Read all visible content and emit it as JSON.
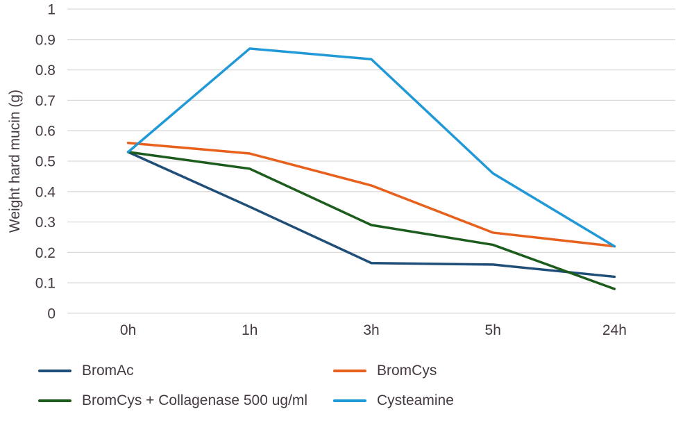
{
  "chart_data": {
    "type": "line",
    "title": "",
    "xlabel": "",
    "ylabel": "Weight hard mucin (g)",
    "categories": [
      "0h",
      "1h",
      "3h",
      "5h",
      "24h"
    ],
    "ylim": [
      0,
      1
    ],
    "ytick_labels": [
      "0",
      "0.1",
      "0.2",
      "0.3",
      "0.4",
      "0.5",
      "0.6",
      "0.7",
      "0.8",
      "0.9",
      "1"
    ],
    "grid": "horizontal gridlines on",
    "legend_position": "bottom, two columns",
    "series": [
      {
        "name": "BromAc",
        "color": "#1F4E79",
        "values": [
          0.53,
          0.35,
          0.165,
          0.16,
          0.12
        ]
      },
      {
        "name": "BromCys",
        "color": "#E8611C",
        "values": [
          0.56,
          0.525,
          0.42,
          0.265,
          0.22
        ]
      },
      {
        "name": "BromCys + Collagenase 500 ug/ml",
        "color": "#1C5C1C",
        "values": [
          0.53,
          0.475,
          0.29,
          0.225,
          0.08
        ]
      },
      {
        "name": "Cysteamine",
        "color": "#2199D6",
        "values": [
          0.53,
          0.87,
          0.835,
          0.46,
          0.22
        ]
      }
    ],
    "colors": {
      "gridline": "#D9D9D9",
      "axis_text": "#453A43",
      "background": "#FFFFFF"
    }
  }
}
